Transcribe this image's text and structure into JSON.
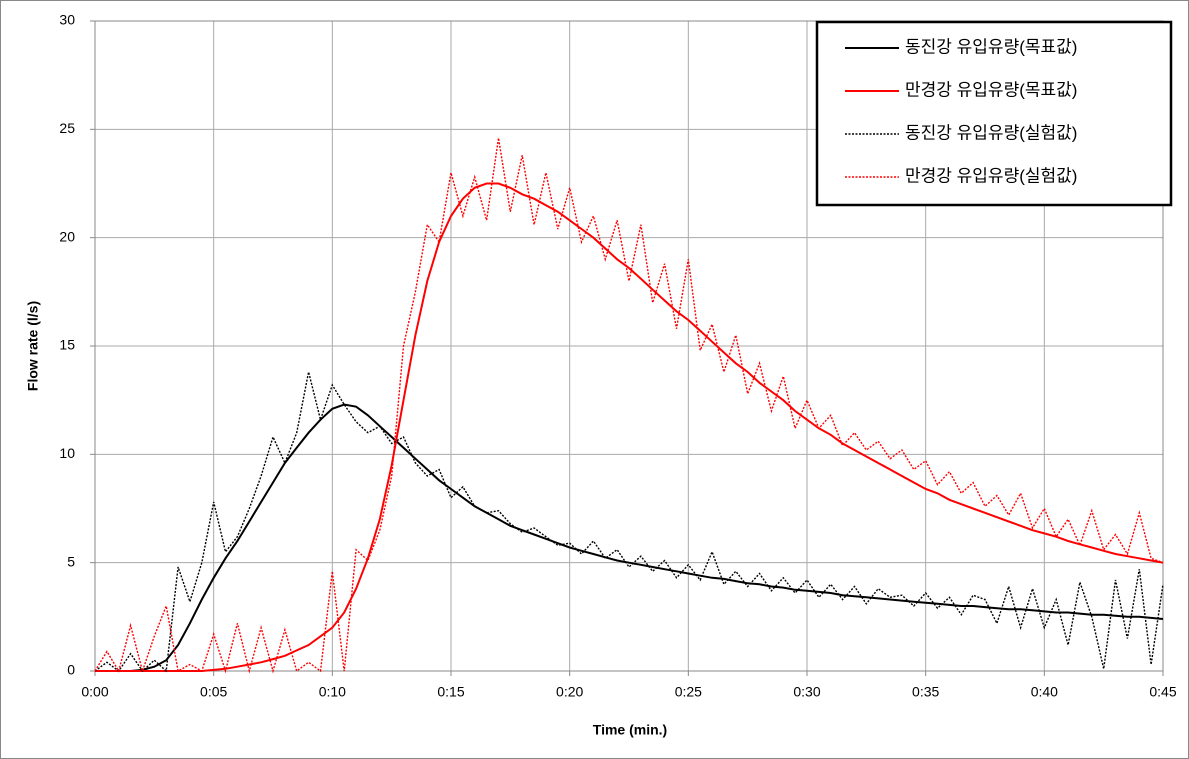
{
  "chart_data": {
    "type": "line",
    "ylabel": "Flow rate (l/s)",
    "xlabel": "Time (min.)",
    "x": [
      0,
      0.5,
      1,
      1.5,
      2,
      2.5,
      3,
      3.5,
      4,
      4.5,
      5,
      5.5,
      6,
      6.5,
      7,
      7.5,
      8,
      8.5,
      9,
      9.5,
      10,
      10.5,
      11,
      11.5,
      12,
      12.5,
      13,
      13.5,
      14,
      14.5,
      15,
      15.5,
      16,
      16.5,
      17,
      17.5,
      18,
      18.5,
      19,
      19.5,
      20,
      20.5,
      21,
      21.5,
      22,
      22.5,
      23,
      23.5,
      24,
      24.5,
      25,
      25.5,
      26,
      26.5,
      27,
      27.5,
      28,
      28.5,
      29,
      29.5,
      30,
      30.5,
      31,
      31.5,
      32,
      32.5,
      33,
      33.5,
      34,
      34.5,
      35,
      35.5,
      36,
      36.5,
      37,
      37.5,
      38,
      38.5,
      39,
      39.5,
      40,
      40.5,
      41,
      41.5,
      42,
      42.5,
      43,
      43.5,
      44,
      44.5,
      45
    ],
    "series": [
      {
        "name": "동진강 유입유량(목표값)",
        "color": "#000000",
        "style": "solid",
        "values": [
          0,
          0,
          0,
          0,
          0.05,
          0.2,
          0.5,
          1.2,
          2.2,
          3.3,
          4.3,
          5.2,
          6.0,
          6.9,
          7.8,
          8.7,
          9.6,
          10.3,
          11.0,
          11.6,
          12.1,
          12.3,
          12.2,
          11.8,
          11.3,
          10.8,
          10.3,
          9.8,
          9.3,
          8.8,
          8.4,
          8.0,
          7.6,
          7.3,
          7.0,
          6.7,
          6.5,
          6.3,
          6.1,
          5.9,
          5.7,
          5.55,
          5.4,
          5.25,
          5.1,
          5.0,
          4.9,
          4.8,
          4.7,
          4.6,
          4.5,
          4.4,
          4.3,
          4.25,
          4.15,
          4.05,
          4.0,
          3.9,
          3.85,
          3.75,
          3.7,
          3.65,
          3.6,
          3.5,
          3.45,
          3.4,
          3.35,
          3.3,
          3.25,
          3.2,
          3.15,
          3.1,
          3.05,
          3.0,
          3.0,
          2.95,
          2.9,
          2.85,
          2.85,
          2.8,
          2.75,
          2.7,
          2.7,
          2.65,
          2.6,
          2.6,
          2.55,
          2.5,
          2.5,
          2.45,
          2.4
        ]
      },
      {
        "name": "만경강 유입유량(목표값)",
        "color": "#ff0000",
        "style": "solid",
        "values": [
          0,
          0,
          0,
          0,
          0,
          0,
          0,
          0,
          0,
          0,
          0.05,
          0.1,
          0.2,
          0.3,
          0.4,
          0.55,
          0.7,
          0.95,
          1.2,
          1.6,
          2.0,
          2.7,
          3.8,
          5.2,
          7.0,
          9.5,
          12.5,
          15.5,
          18.0,
          19.8,
          21.0,
          21.8,
          22.3,
          22.5,
          22.5,
          22.3,
          22.0,
          21.8,
          21.5,
          21.2,
          20.8,
          20.4,
          20.0,
          19.5,
          19.0,
          18.6,
          18.1,
          17.6,
          17.1,
          16.6,
          16.2,
          15.7,
          15.2,
          14.7,
          14.2,
          13.8,
          13.3,
          12.9,
          12.5,
          12.0,
          11.6,
          11.2,
          10.9,
          10.5,
          10.2,
          9.9,
          9.6,
          9.3,
          9.0,
          8.7,
          8.4,
          8.2,
          7.9,
          7.7,
          7.5,
          7.3,
          7.1,
          6.9,
          6.7,
          6.5,
          6.35,
          6.2,
          6.0,
          5.85,
          5.7,
          5.55,
          5.4,
          5.3,
          5.2,
          5.1,
          5.0
        ]
      },
      {
        "name": "동진강 유입유량(실험값)",
        "color": "#000000",
        "style": "dotted",
        "values": [
          0,
          0.4,
          0,
          0.8,
          0,
          0.5,
          0,
          4.8,
          3.2,
          5.0,
          7.8,
          5.5,
          6.2,
          7.5,
          9.0,
          10.8,
          9.6,
          11.0,
          13.8,
          11.6,
          13.2,
          12.3,
          11.5,
          11.0,
          11.3,
          10.5,
          10.8,
          9.6,
          9.0,
          9.3,
          8.0,
          8.5,
          7.6,
          7.3,
          7.4,
          6.8,
          6.4,
          6.6,
          6.2,
          5.8,
          5.9,
          5.4,
          6.0,
          5.2,
          5.6,
          4.8,
          5.3,
          4.6,
          5.1,
          4.3,
          4.9,
          4.2,
          5.5,
          4.0,
          4.6,
          3.9,
          4.5,
          3.7,
          4.3,
          3.6,
          4.2,
          3.4,
          4.0,
          3.3,
          3.9,
          3.1,
          3.8,
          3.4,
          3.5,
          3.0,
          3.6,
          2.9,
          3.4,
          2.6,
          3.5,
          3.3,
          2.2,
          3.9,
          2.0,
          3.8,
          2.0,
          3.3,
          1.2,
          4.1,
          2.5,
          0.1,
          4.2,
          1.5,
          4.7,
          0.3,
          4.0
        ]
      },
      {
        "name": "만경강 유입유량(실험값)",
        "color": "#ff0000",
        "style": "dotted",
        "values": [
          0,
          0.9,
          0,
          2.1,
          0,
          1.6,
          3.0,
          0,
          0.3,
          0,
          1.7,
          0,
          2.2,
          0,
          2.0,
          0,
          1.9,
          0,
          0.4,
          0,
          4.6,
          0,
          5.6,
          5.1,
          6.5,
          9.0,
          15.0,
          17.5,
          20.6,
          19.8,
          23.0,
          21.0,
          22.8,
          20.8,
          24.6,
          21.2,
          23.8,
          20.6,
          23.0,
          20.4,
          22.3,
          19.8,
          21.0,
          19.0,
          20.8,
          18.0,
          20.6,
          17.0,
          18.8,
          15.8,
          19.0,
          14.8,
          16.0,
          13.8,
          15.5,
          12.8,
          14.2,
          12.0,
          13.6,
          11.2,
          12.5,
          11.2,
          11.8,
          10.4,
          11.0,
          10.2,
          10.6,
          9.8,
          10.2,
          9.3,
          9.7,
          8.6,
          9.2,
          8.2,
          8.7,
          7.6,
          8.1,
          7.2,
          8.2,
          6.6,
          7.5,
          6.2,
          7.0,
          5.8,
          7.4,
          5.6,
          6.3,
          5.4,
          7.3,
          5.2,
          5.0
        ]
      }
    ],
    "xlim": [
      0,
      45
    ],
    "xticks": [
      {
        "value": 0,
        "label": "0:00"
      },
      {
        "value": 5,
        "label": "0:05"
      },
      {
        "value": 10,
        "label": "0:10"
      },
      {
        "value": 15,
        "label": "0:15"
      },
      {
        "value": 20,
        "label": "0:20"
      },
      {
        "value": 25,
        "label": "0:25"
      },
      {
        "value": 30,
        "label": "0:30"
      },
      {
        "value": 35,
        "label": "0:35"
      },
      {
        "value": 40,
        "label": "0:40"
      },
      {
        "value": 45,
        "label": "0:45"
      }
    ],
    "ylim": [
      0,
      30
    ],
    "yticks": [
      0,
      5,
      10,
      15,
      20,
      25,
      30
    ],
    "grid": true,
    "legend": "upper-right"
  }
}
